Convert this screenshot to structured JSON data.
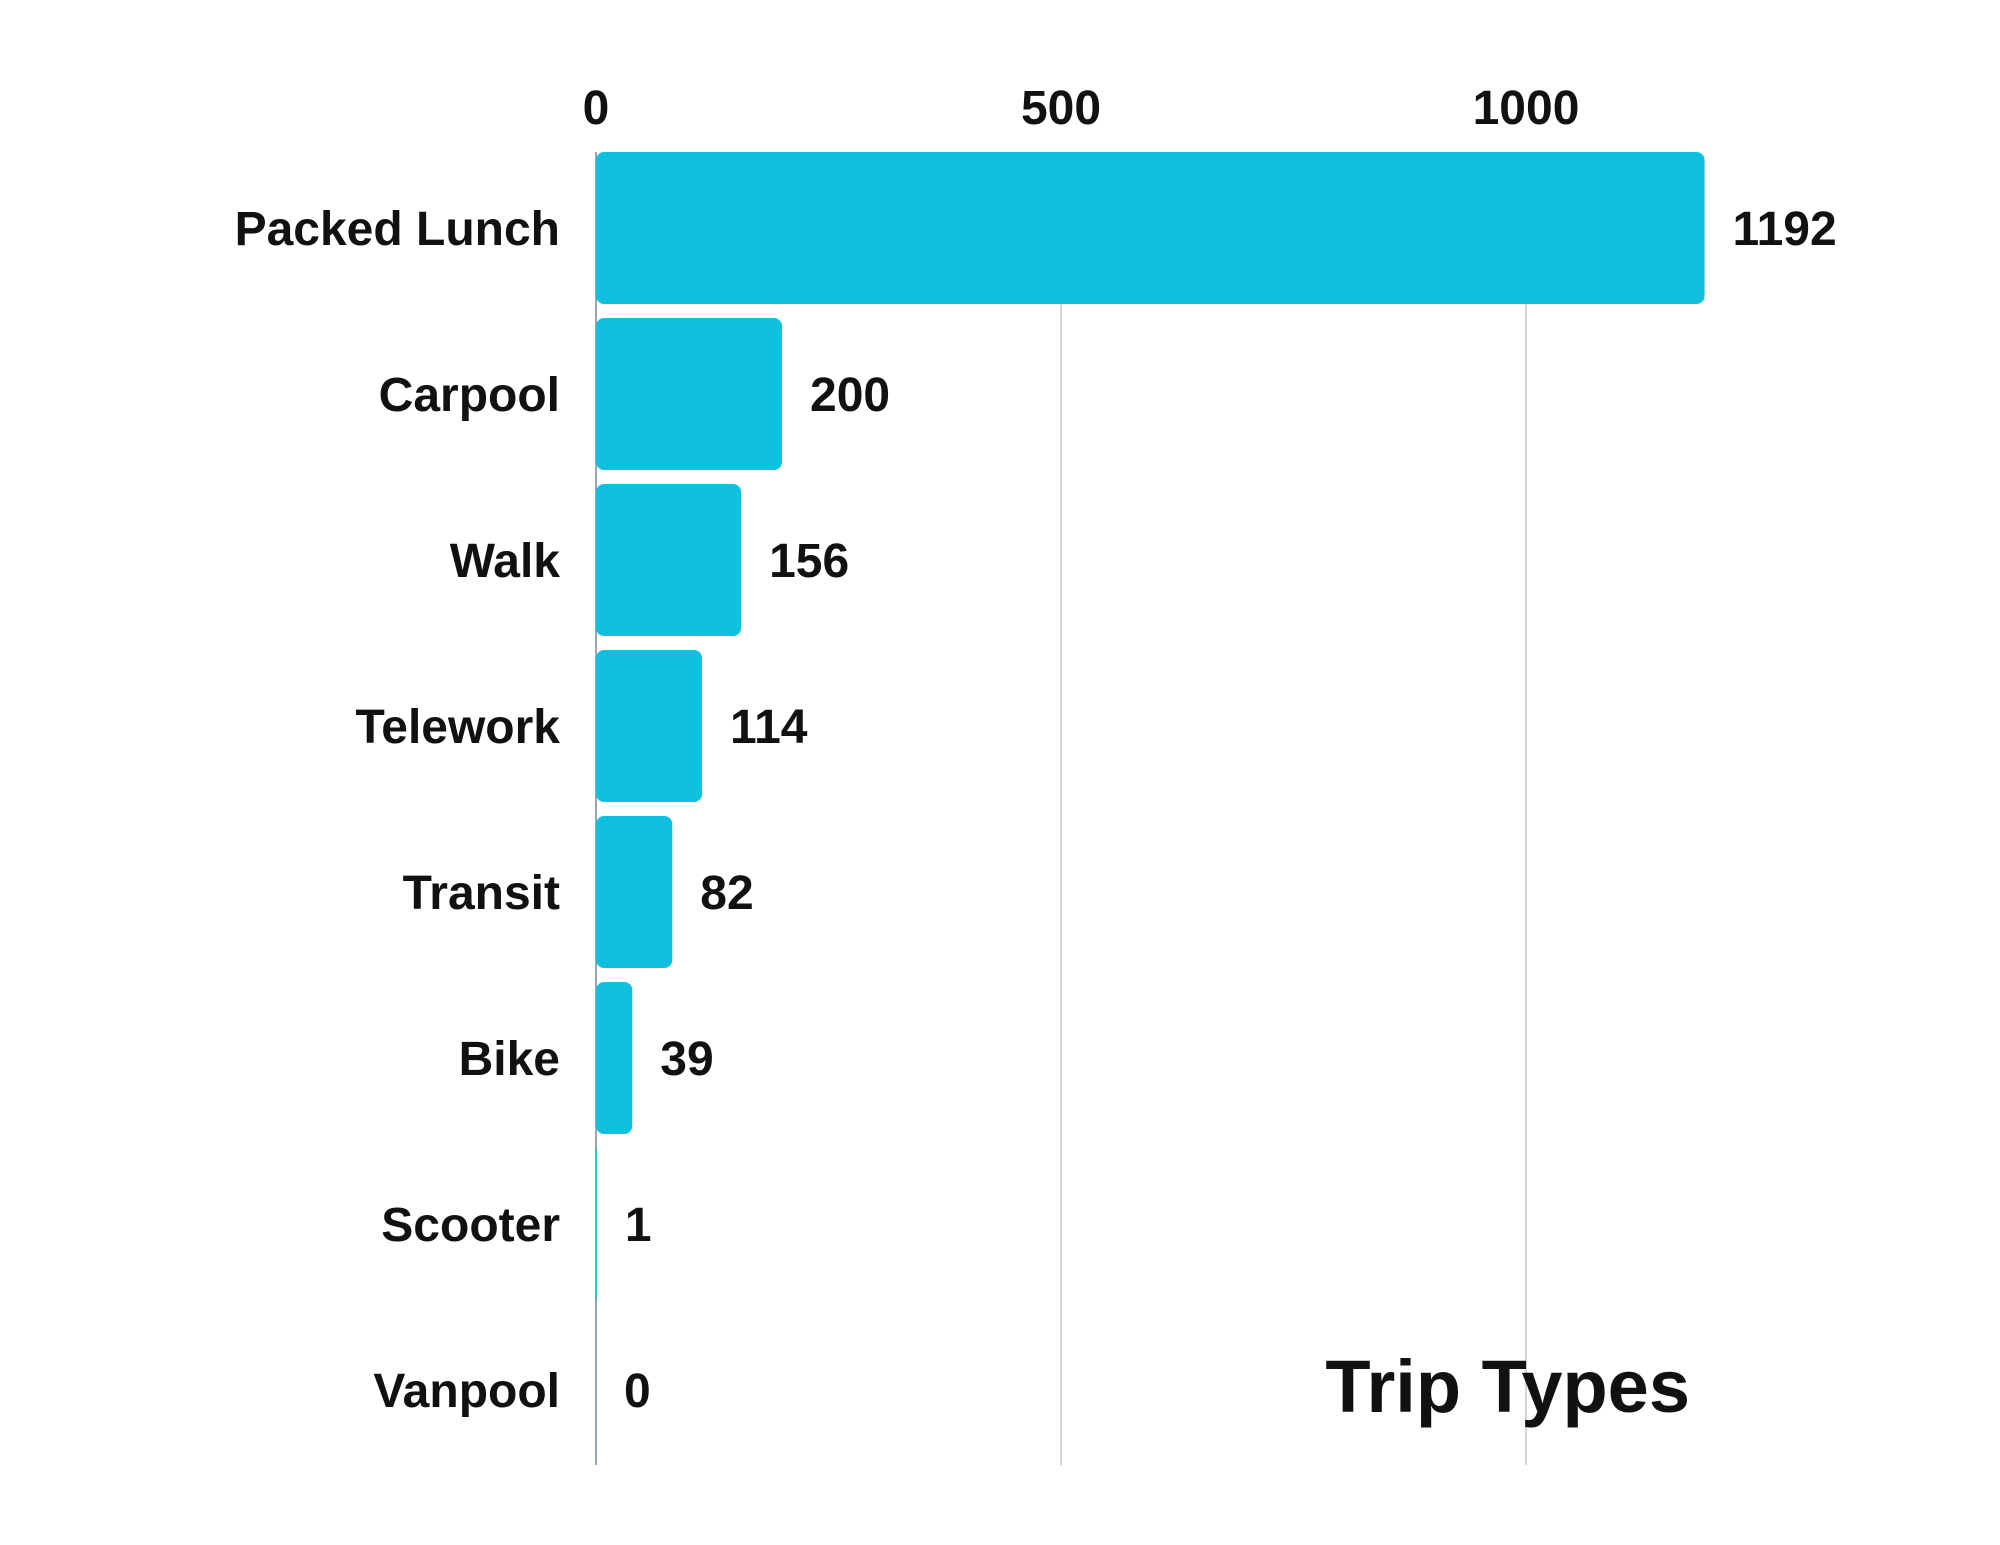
{
  "chart_data": {
    "type": "bar",
    "orientation": "horizontal",
    "title": "Trip Types",
    "categories": [
      "Packed Lunch",
      "Carpool",
      "Walk",
      "Telework",
      "Transit",
      "Bike",
      "Scooter",
      "Vanpool"
    ],
    "values": [
      1192,
      200,
      156,
      114,
      82,
      39,
      1,
      0
    ],
    "value_labels": [
      "1192",
      "200",
      "156",
      "114",
      "82",
      "39",
      "1",
      "0"
    ],
    "x_ticks": [
      0,
      500,
      1000
    ],
    "x_tick_labels": [
      "0",
      "500",
      "1000"
    ],
    "xlim": [
      0,
      1192
    ],
    "xlabel": "",
    "ylabel": "",
    "grid": true,
    "axis_position": "top",
    "title_placement": "bottom-right",
    "bar_color": "#0fc0df",
    "text_color": "#111111",
    "grid_color": "#d6d6d6"
  }
}
